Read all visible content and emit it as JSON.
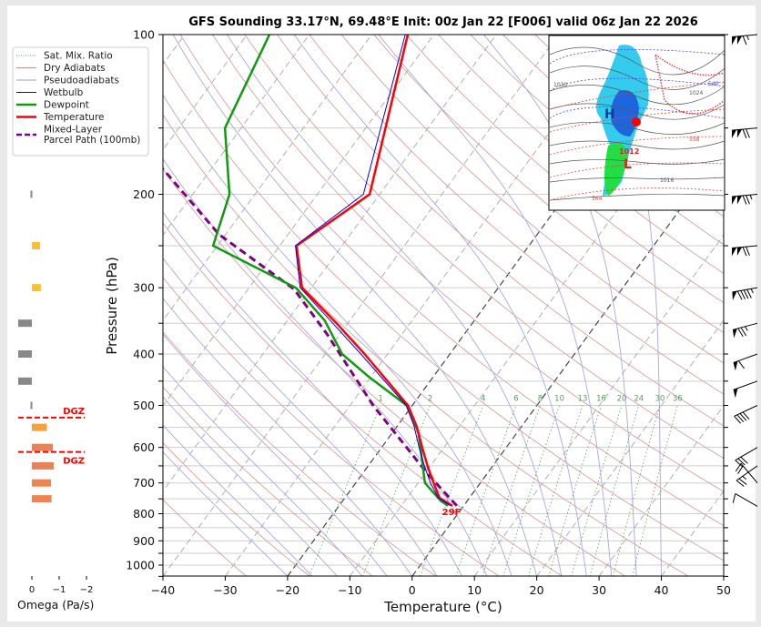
{
  "chart_data": {
    "type": "skew-t",
    "title": "GFS Sounding 33.17°N, 69.48°E Init: 00z Jan 22 [F006] valid 06z Jan 22 2026",
    "xlabel": "Temperature (°C)",
    "ylabel": "Pressure (hPa)",
    "xlim": [
      -40,
      50
    ],
    "ylim": [
      1050,
      100
    ],
    "yscale": "log",
    "x_ticks": [
      -40,
      -30,
      -20,
      -10,
      0,
      10,
      20,
      30,
      40,
      50
    ],
    "y_ticks": [
      100,
      200,
      300,
      400,
      500,
      600,
      700,
      800,
      900,
      1000
    ],
    "highlighted_isotherms": [
      -20,
      0
    ],
    "legend": {
      "placement": "upper-left",
      "entries": [
        {
          "label": "Sat. Mix. Ratio",
          "color": "#5a9a5a",
          "style": "dotted"
        },
        {
          "label": "Dry Adiabats",
          "color": "#d09090",
          "style": "solid"
        },
        {
          "label": "Pseudoadiabats",
          "color": "#9a9ad8",
          "style": "solid"
        },
        {
          "label": "Wetbulb",
          "color": "#0000ff",
          "style": "solid"
        },
        {
          "label": "Dewpoint",
          "color": "#119911",
          "style": "solid"
        },
        {
          "label": "Temperature",
          "color": "#ff0000",
          "style": "solid"
        },
        {
          "label": "Mixed-Layer",
          "label2": "Parcel Path (100mb)",
          "color": "#800080",
          "style": "dashed"
        }
      ]
    },
    "mixing_ratio_labels": [
      "1",
      "2",
      "4",
      "6",
      "8",
      "10",
      "13",
      "16",
      "20",
      "24",
      "30",
      "36"
    ],
    "mixing_ratios": [
      1,
      2,
      4,
      6,
      8,
      10,
      13,
      16,
      20,
      24,
      30,
      36
    ],
    "temperature": {
      "p": [
        773,
        747,
        700,
        653,
        600,
        547,
        500,
        400,
        350,
        300,
        250,
        200,
        100
      ],
      "T": [
        -1.8,
        -4.8,
        -7.5,
        -10.3,
        -13.5,
        -16.9,
        -20.7,
        -33.7,
        -41.8,
        -51.5,
        -57.3,
        -51.6,
        -64.2
      ]
    },
    "dewpoint": {
      "p": [
        773,
        756,
        700,
        563,
        500,
        443,
        400,
        346,
        300,
        250,
        200,
        150,
        100
      ],
      "T": [
        -2.5,
        -4.3,
        -8.9,
        -15.8,
        -20.9,
        -30.1,
        -37.3,
        -44.0,
        -52.5,
        -70.7,
        -74.1,
        -82.6,
        -86.4
      ]
    },
    "wetbulb": {
      "p": [
        773,
        747,
        700,
        653,
        600,
        547,
        500,
        400,
        350,
        300,
        250,
        200,
        100
      ],
      "T": [
        -2.1,
        -5.0,
        -8.0,
        -10.8,
        -14.0,
        -17.3,
        -21.0,
        -34.3,
        -42.4,
        -51.8,
        -57.5,
        -52.6,
        -64.6
      ]
    },
    "parcel": {
      "p": [
        773,
        672,
        500,
        368,
        302,
        238,
        179
      ],
      "T": [
        -1.1,
        -9.6,
        -26.3,
        -41.9,
        -52.6,
        -71.1,
        -87.8
      ]
    },
    "surface_label": "29F",
    "wind_barbs": [
      {
        "p": 100,
        "kt": 115,
        "dir": 265
      },
      {
        "p": 150,
        "kt": 120,
        "dir": 265
      },
      {
        "p": 200,
        "kt": 125,
        "dir": 265
      },
      {
        "p": 250,
        "kt": 120,
        "dir": 265
      },
      {
        "p": 300,
        "kt": 95,
        "dir": 260
      },
      {
        "p": 350,
        "kt": 75,
        "dir": 255
      },
      {
        "p": 400,
        "kt": 60,
        "dir": 250
      },
      {
        "p": 450,
        "kt": 50,
        "dir": 250
      },
      {
        "p": 500,
        "kt": 40,
        "dir": 245
      },
      {
        "p": 600,
        "kt": 30,
        "dir": 240
      },
      {
        "p": 650,
        "kt": 25,
        "dir": 235
      },
      {
        "p": 700,
        "kt": 20,
        "dir": 320
      },
      {
        "p": 775,
        "kt": 10,
        "dir": 300
      }
    ],
    "omega": {
      "xlabel": "Omega (Pa/s)",
      "x_ticks": [
        "0",
        "−1",
        "−2"
      ],
      "xlim": [
        0.5,
        -2
      ],
      "levels": [
        {
          "p": 150,
          "value": -0.27,
          "color": "#fbc02d"
        },
        {
          "p": 200,
          "value": 0.05,
          "color": "#888888"
        },
        {
          "p": 250,
          "value": -0.3,
          "color": "#fbc02d"
        },
        {
          "p": 300,
          "value": -0.33,
          "color": "#fbc02d"
        },
        {
          "p": 350,
          "value": 0.5,
          "color": "#888888"
        },
        {
          "p": 400,
          "value": 0.5,
          "color": "#888888"
        },
        {
          "p": 450,
          "value": 0.5,
          "color": "#888888"
        },
        {
          "p": 500,
          "value": 0.05,
          "color": "#888888"
        },
        {
          "p": 550,
          "value": -0.55,
          "color": "#f7a040"
        },
        {
          "p": 600,
          "value": -0.77,
          "color": "#e8825a"
        },
        {
          "p": 650,
          "value": -0.8,
          "color": "#e8825a"
        },
        {
          "p": 700,
          "value": -0.7,
          "color": "#f0844e"
        },
        {
          "p": 750,
          "value": -0.72,
          "color": "#f0844e"
        }
      ],
      "dgz": {
        "label": "DGZ",
        "p": [
          527,
          612
        ],
        "color": "#ff0000"
      }
    },
    "inset_map": {
      "labels": [
        "H",
        "L",
        "1012",
        "1016",
        "1024",
        "1030",
        "540",
        "558",
        "564"
      ],
      "marker_color": "#ff0000"
    }
  }
}
